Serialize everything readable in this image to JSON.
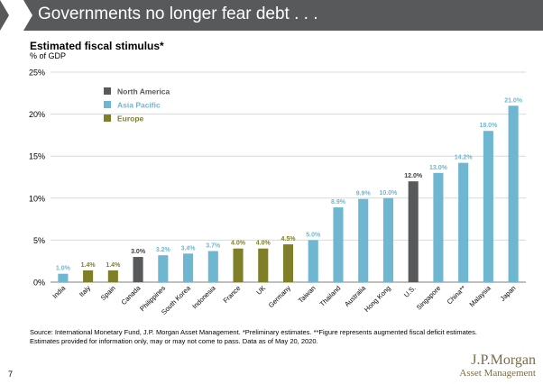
{
  "header": {
    "title": "Governments no longer fear debt . . ."
  },
  "page_number": "7",
  "footnote": {
    "line1": "Source: International Monetary Fund, J.P. Morgan Asset Management. *Preliminary estimates. **Figure represents augmented fiscal deficit estimates.",
    "line2": "Estimates provided for information only, may or may not come to pass. Data as of May 20, 2020."
  },
  "logo": {
    "line1": "J.P.Morgan",
    "line2": "Asset Management"
  },
  "chart_data": {
    "type": "bar",
    "title": "Estimated fiscal stimulus*",
    "subtitle": "% of GDP",
    "xlabel": "",
    "ylabel": "",
    "ylim": [
      0,
      25
    ],
    "yticks": [
      "0%",
      "5%",
      "10%",
      "15%",
      "20%",
      "25%"
    ],
    "ytick_values": [
      0,
      5,
      10,
      15,
      20,
      25
    ],
    "grid": true,
    "legend_position": "top-left",
    "legend": [
      {
        "name": "North America",
        "color": "#58595b"
      },
      {
        "name": "Asia Pacific",
        "color": "#6fb7d1"
      },
      {
        "name": "Europe",
        "color": "#7f7f2a"
      }
    ],
    "categories": [
      "India",
      "Italy",
      "Spain",
      "Canada",
      "Philippines",
      "South Korea",
      "Indonesia",
      "France",
      "UK",
      "Germany",
      "Taiwan",
      "Thailand",
      "Australia",
      "Hong Kong",
      "U.S.",
      "Singapore",
      "China**",
      "Malaysia",
      "Japan"
    ],
    "values": [
      1.0,
      1.4,
      1.4,
      3.0,
      3.2,
      3.4,
      3.7,
      4.0,
      4.0,
      4.5,
      5.0,
      8.9,
      9.9,
      10.0,
      12.0,
      13.0,
      14.2,
      18.0,
      21.0
    ],
    "labels": [
      "1.0%",
      "1.4%",
      "1.4%",
      "3.0%",
      "3.2%",
      "3.4%",
      "3.7%",
      "4.0%",
      "4.0%",
      "4.5%",
      "5.0%",
      "8.9%",
      "9.9%",
      "10.0%",
      "12.0%",
      "13.0%",
      "14.2%",
      "18.0%",
      "21.0%"
    ],
    "regions": [
      "Asia Pacific",
      "Europe",
      "Europe",
      "North America",
      "Asia Pacific",
      "Asia Pacific",
      "Asia Pacific",
      "Europe",
      "Europe",
      "Europe",
      "Asia Pacific",
      "Asia Pacific",
      "Asia Pacific",
      "Asia Pacific",
      "North America",
      "Asia Pacific",
      "Asia Pacific",
      "Asia Pacific",
      "Asia Pacific"
    ]
  }
}
